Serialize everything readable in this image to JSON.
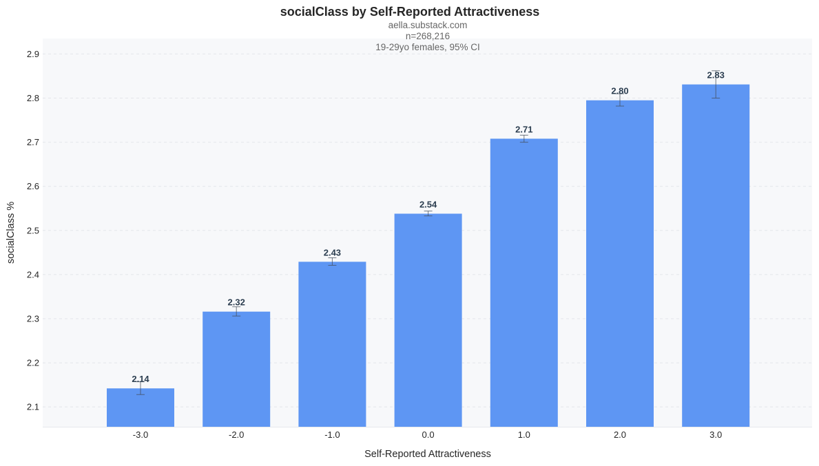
{
  "chart_data": {
    "type": "bar",
    "title": "socialClass by Self-Reported Attractiveness",
    "subtitle_lines": [
      "aella.substack.com",
      "n=268,216",
      "19-29yo females, 95% CI"
    ],
    "xlabel": "Self-Reported Attractiveness",
    "ylabel": "socialClass %",
    "categories": [
      "-3.0",
      "-2.0",
      "-1.0",
      "0.0",
      "1.0",
      "2.0",
      "3.0"
    ],
    "values": [
      2.142,
      2.316,
      2.429,
      2.538,
      2.708,
      2.795,
      2.831
    ],
    "value_labels": [
      "2.14",
      "2.32",
      "2.43",
      "2.54",
      "2.71",
      "2.80",
      "2.83"
    ],
    "ci_low": [
      2.128,
      2.306,
      2.421,
      2.533,
      2.7,
      2.782,
      2.8
    ],
    "ci_high": [
      2.157,
      2.327,
      2.438,
      2.544,
      2.716,
      2.81,
      2.862
    ],
    "ylim": [
      2.055,
      2.935
    ],
    "yticks": [
      2.1,
      2.2,
      2.3,
      2.4,
      2.5,
      2.6,
      2.7,
      2.8,
      2.9
    ],
    "ytick_labels": [
      "2.1",
      "2.2",
      "2.3",
      "2.4",
      "2.5",
      "2.6",
      "2.7",
      "2.8",
      "2.9"
    ],
    "grid": true,
    "colors": {
      "bar": "#5e96f3",
      "plot_background": "#f7f8fa",
      "error_bar": "#444d5a",
      "label": "#2c3e50"
    }
  }
}
